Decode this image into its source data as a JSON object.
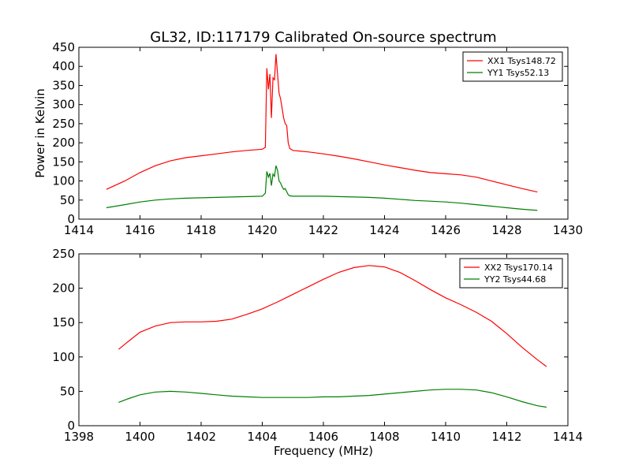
{
  "figure": {
    "title": "GL32, ID:117179 Calibrated On-source spectrum"
  },
  "chart_data": [
    {
      "type": "line",
      "title": "GL32, ID:117179 Calibrated On-source spectrum",
      "xlabel": "",
      "ylabel": "Power in Kelvin",
      "xlim": [
        1414,
        1430
      ],
      "ylim": [
        0,
        450
      ],
      "xticks": [
        1414,
        1416,
        1418,
        1420,
        1422,
        1424,
        1426,
        1428,
        1430
      ],
      "yticks": [
        0,
        50,
        100,
        150,
        200,
        250,
        300,
        350,
        400,
        450
      ],
      "grid": false,
      "legend": "top-right",
      "series": [
        {
          "name": "XX1 Tsys148.72",
          "color": "#ff0000",
          "x": [
            1414.9,
            1415.5,
            1416.0,
            1416.5,
            1417.0,
            1417.5,
            1418.0,
            1418.5,
            1419.0,
            1419.5,
            1420.0,
            1420.1,
            1420.15,
            1420.2,
            1420.25,
            1420.3,
            1420.35,
            1420.4,
            1420.45,
            1420.5,
            1420.55,
            1420.6,
            1420.65,
            1420.7,
            1420.75,
            1420.8,
            1420.85,
            1420.9,
            1421.0,
            1421.5,
            1422.0,
            1422.5,
            1423.0,
            1423.5,
            1424.0,
            1424.5,
            1425.0,
            1425.5,
            1426.0,
            1426.5,
            1427.0,
            1427.5,
            1428.0,
            1428.5,
            1429.0
          ],
          "values": [
            78,
            100,
            122,
            140,
            153,
            161,
            166,
            171,
            176,
            180,
            183,
            188,
            395,
            340,
            380,
            265,
            370,
            365,
            432,
            380,
            330,
            315,
            290,
            265,
            250,
            245,
            200,
            185,
            180,
            176,
            171,
            165,
            158,
            150,
            142,
            135,
            128,
            122,
            119,
            116,
            110,
            100,
            90,
            80,
            71
          ]
        },
        {
          "name": "YY1 Tsys52.13",
          "color": "#008000",
          "x": [
            1414.9,
            1415.5,
            1416.0,
            1416.5,
            1417.0,
            1417.5,
            1418.0,
            1418.5,
            1419.0,
            1419.5,
            1420.0,
            1420.1,
            1420.15,
            1420.2,
            1420.25,
            1420.3,
            1420.35,
            1420.4,
            1420.45,
            1420.5,
            1420.55,
            1420.6,
            1420.65,
            1420.7,
            1420.75,
            1420.8,
            1420.85,
            1420.9,
            1421.0,
            1421.5,
            1422.0,
            1422.5,
            1423.0,
            1423.5,
            1424.0,
            1424.5,
            1425.0,
            1425.5,
            1426.0,
            1426.5,
            1427.0,
            1427.5,
            1428.0,
            1428.5,
            1429.0
          ],
          "values": [
            30,
            38,
            45,
            50,
            53,
            55,
            56,
            57,
            58,
            59,
            60,
            68,
            125,
            110,
            120,
            88,
            118,
            112,
            140,
            128,
            100,
            95,
            85,
            78,
            80,
            72,
            64,
            61,
            60,
            60,
            60,
            59,
            58,
            57,
            55,
            52,
            49,
            47,
            45,
            42,
            38,
            34,
            30,
            26,
            23
          ]
        }
      ]
    },
    {
      "type": "line",
      "title": "",
      "xlabel": "Frequency (MHz)",
      "ylabel": "",
      "xlim": [
        1398,
        1414
      ],
      "ylim": [
        0,
        250
      ],
      "xticks": [
        1398,
        1400,
        1402,
        1404,
        1406,
        1408,
        1410,
        1412,
        1414
      ],
      "yticks": [
        0,
        50,
        100,
        150,
        200,
        250
      ],
      "grid": false,
      "legend": "top-right",
      "series": [
        {
          "name": "XX2 Tsys170.14",
          "color": "#ff0000",
          "x": [
            1399.3,
            1399.6,
            1400.0,
            1400.5,
            1401.0,
            1401.5,
            1402.0,
            1402.5,
            1403.0,
            1403.5,
            1404.0,
            1404.5,
            1405.0,
            1405.5,
            1406.0,
            1406.5,
            1407.0,
            1407.5,
            1408.0,
            1408.5,
            1409.0,
            1409.5,
            1410.0,
            1410.5,
            1411.0,
            1411.5,
            1412.0,
            1412.5,
            1413.0,
            1413.3
          ],
          "values": [
            111,
            122,
            136,
            145,
            150,
            151,
            151,
            152,
            155,
            162,
            170,
            180,
            191,
            202,
            213,
            223,
            230,
            233,
            231,
            223,
            211,
            198,
            186,
            176,
            165,
            152,
            134,
            114,
            96,
            86
          ]
        },
        {
          "name": "YY2 Tsys44.68",
          "color": "#008000",
          "x": [
            1399.3,
            1399.6,
            1400.0,
            1400.5,
            1401.0,
            1401.5,
            1402.0,
            1402.5,
            1403.0,
            1403.5,
            1404.0,
            1404.5,
            1405.0,
            1405.5,
            1406.0,
            1406.5,
            1407.0,
            1407.5,
            1408.0,
            1408.5,
            1409.0,
            1409.5,
            1410.0,
            1410.5,
            1411.0,
            1411.5,
            1412.0,
            1412.5,
            1413.0,
            1413.3
          ],
          "values": [
            34,
            39,
            45,
            49,
            50,
            49,
            47,
            45,
            43,
            42,
            41,
            41,
            41,
            41,
            42,
            42,
            43,
            44,
            46,
            48,
            50,
            52,
            53,
            53,
            52,
            48,
            42,
            35,
            29,
            27
          ]
        }
      ]
    }
  ]
}
